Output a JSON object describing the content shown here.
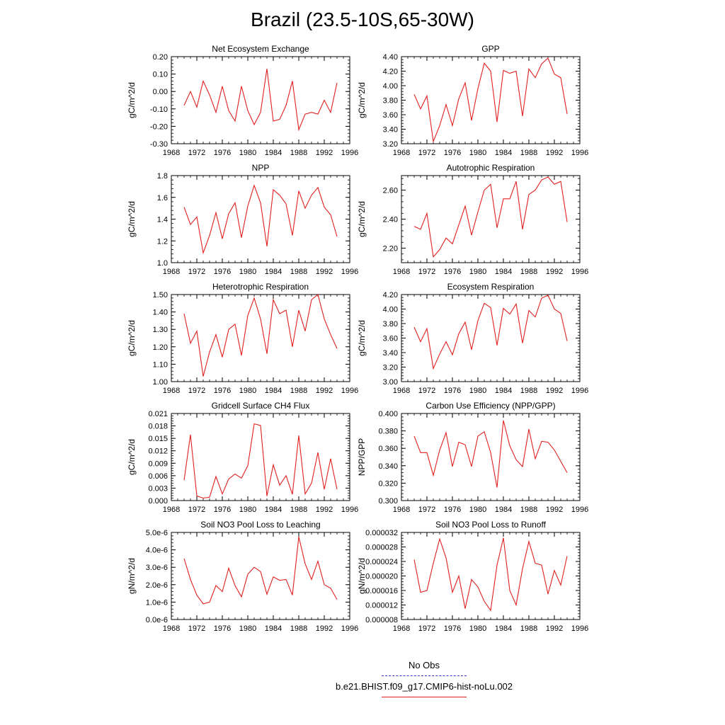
{
  "title": "Brazil (23.5-10S,65-30W)",
  "legend": {
    "obs_label": "No Obs",
    "obs_color": "#3030d0",
    "run_label": "b.e21.BHIST.f09_g17.CMIP6-hist-noLu.002",
    "run_color": "#e02020"
  },
  "chart_data": [
    {
      "type": "line",
      "title": "Net Ecosystem Exchange",
      "ylabel": "gC/m^2/d",
      "xlim": [
        1968,
        1996
      ],
      "xticks": [
        1968,
        1972,
        1976,
        1980,
        1984,
        1988,
        1992,
        1996
      ],
      "ylim": [
        -0.3,
        0.2
      ],
      "yticks": [
        "-0.30",
        "-0.20",
        "-0.10",
        "0.00",
        "0.10",
        "0.20"
      ],
      "x": [
        1970,
        1971,
        1972,
        1973,
        1974,
        1975,
        1976,
        1977,
        1978,
        1979,
        1980,
        1981,
        1982,
        1983,
        1984,
        1985,
        1986,
        1987,
        1988,
        1989,
        1990,
        1991,
        1992,
        1993,
        1994
      ],
      "values": [
        -0.08,
        0.0,
        -0.09,
        0.06,
        -0.02,
        -0.12,
        0.03,
        -0.11,
        -0.17,
        0.03,
        -0.11,
        -0.19,
        -0.12,
        0.13,
        -0.17,
        -0.16,
        -0.08,
        0.06,
        -0.22,
        -0.13,
        -0.12,
        -0.13,
        -0.05,
        -0.12,
        0.05
      ]
    },
    {
      "type": "line",
      "title": "GPP",
      "ylabel": "gC/m^2/d",
      "xlim": [
        1968,
        1996
      ],
      "xticks": [
        1968,
        1972,
        1976,
        1980,
        1984,
        1988,
        1992,
        1996
      ],
      "ylim": [
        3.2,
        4.4
      ],
      "yticks": [
        "3.20",
        "3.40",
        "3.60",
        "3.80",
        "4.00",
        "4.20",
        "4.40"
      ],
      "x": [
        1970,
        1971,
        1972,
        1973,
        1974,
        1975,
        1976,
        1977,
        1978,
        1979,
        1980,
        1981,
        1982,
        1983,
        1984,
        1985,
        1986,
        1987,
        1988,
        1989,
        1990,
        1991,
        1992,
        1993,
        1994
      ],
      "values": [
        3.88,
        3.68,
        3.86,
        3.23,
        3.45,
        3.74,
        3.45,
        3.82,
        4.04,
        3.52,
        3.96,
        4.31,
        4.2,
        3.5,
        4.21,
        4.17,
        4.2,
        3.58,
        4.23,
        4.11,
        4.3,
        4.38,
        4.16,
        4.11,
        3.61
      ]
    },
    {
      "type": "line",
      "title": "NPP",
      "ylabel": "gC/m^2/d",
      "xlim": [
        1968,
        1996
      ],
      "xticks": [
        1968,
        1972,
        1976,
        1980,
        1984,
        1988,
        1992,
        1996
      ],
      "ylim": [
        1.0,
        1.8
      ],
      "yticks": [
        "1.0",
        "1.2",
        "1.4",
        "1.6",
        "1.8"
      ],
      "x": [
        1970,
        1971,
        1972,
        1973,
        1974,
        1975,
        1976,
        1977,
        1978,
        1979,
        1980,
        1981,
        1982,
        1983,
        1984,
        1985,
        1986,
        1987,
        1988,
        1989,
        1990,
        1991,
        1992,
        1993,
        1994
      ],
      "values": [
        1.51,
        1.35,
        1.42,
        1.09,
        1.25,
        1.46,
        1.22,
        1.45,
        1.55,
        1.23,
        1.52,
        1.71,
        1.55,
        1.15,
        1.67,
        1.62,
        1.54,
        1.25,
        1.66,
        1.5,
        1.62,
        1.69,
        1.51,
        1.44,
        1.24
      ]
    },
    {
      "type": "line",
      "title": "Autotrophic Respiration",
      "ylabel": "gC/m^2/d",
      "xlim": [
        1968,
        1996
      ],
      "xticks": [
        1968,
        1972,
        1976,
        1980,
        1984,
        1988,
        1992,
        1996
      ],
      "ylim": [
        2.1,
        2.7
      ],
      "yticks": [
        "2.20",
        "2.40",
        "2.60"
      ],
      "x": [
        1970,
        1971,
        1972,
        1973,
        1974,
        1975,
        1976,
        1977,
        1978,
        1979,
        1980,
        1981,
        1982,
        1983,
        1984,
        1985,
        1986,
        1987,
        1988,
        1989,
        1990,
        1991,
        1992,
        1993,
        1994
      ],
      "values": [
        2.35,
        2.33,
        2.44,
        2.14,
        2.19,
        2.27,
        2.23,
        2.36,
        2.49,
        2.29,
        2.45,
        2.6,
        2.64,
        2.34,
        2.54,
        2.54,
        2.66,
        2.33,
        2.57,
        2.6,
        2.67,
        2.69,
        2.64,
        2.66,
        2.38
      ]
    },
    {
      "type": "line",
      "title": "Heterotrophic Respiration",
      "ylabel": "gC/m^2/d",
      "xlim": [
        1968,
        1996
      ],
      "xticks": [
        1968,
        1972,
        1976,
        1980,
        1984,
        1988,
        1992,
        1996
      ],
      "ylim": [
        1.0,
        1.5
      ],
      "yticks": [
        "1.00",
        "1.10",
        "1.20",
        "1.30",
        "1.40",
        "1.50"
      ],
      "x": [
        1970,
        1971,
        1972,
        1973,
        1974,
        1975,
        1976,
        1977,
        1978,
        1979,
        1980,
        1981,
        1982,
        1983,
        1984,
        1985,
        1986,
        1987,
        1988,
        1989,
        1990,
        1991,
        1992,
        1993,
        1994
      ],
      "values": [
        1.39,
        1.22,
        1.29,
        1.03,
        1.17,
        1.27,
        1.14,
        1.3,
        1.33,
        1.15,
        1.38,
        1.48,
        1.36,
        1.16,
        1.47,
        1.39,
        1.41,
        1.2,
        1.41,
        1.29,
        1.47,
        1.5,
        1.36,
        1.27,
        1.19
      ]
    },
    {
      "type": "line",
      "title": "Ecosystem Respiration",
      "ylabel": "gC/m^2/d",
      "xlim": [
        1968,
        1996
      ],
      "xticks": [
        1968,
        1972,
        1976,
        1980,
        1984,
        1988,
        1992,
        1996
      ],
      "ylim": [
        3.0,
        4.2
      ],
      "yticks": [
        "3.00",
        "3.20",
        "3.40",
        "3.60",
        "3.80",
        "4.00",
        "4.20"
      ],
      "x": [
        1970,
        1971,
        1972,
        1973,
        1974,
        1975,
        1976,
        1977,
        1978,
        1979,
        1980,
        1981,
        1982,
        1983,
        1984,
        1985,
        1986,
        1987,
        1988,
        1989,
        1990,
        1991,
        1992,
        1993,
        1994
      ],
      "values": [
        3.75,
        3.55,
        3.73,
        3.18,
        3.38,
        3.55,
        3.37,
        3.66,
        3.82,
        3.44,
        3.84,
        4.08,
        4.02,
        3.5,
        4.01,
        3.93,
        4.07,
        3.53,
        3.98,
        3.89,
        4.15,
        4.19,
        4.0,
        3.94,
        3.56
      ]
    },
    {
      "type": "line",
      "title": "Gridcell Surface CH4 Flux",
      "ylabel": "gC/m^2/d",
      "xlim": [
        1968,
        1996
      ],
      "xticks": [
        1968,
        1972,
        1976,
        1980,
        1984,
        1988,
        1992,
        1996
      ],
      "ylim": [
        0.0,
        0.021
      ],
      "yticks": [
        "0.000",
        "0.003",
        "0.006",
        "0.009",
        "0.012",
        "0.015",
        "0.018",
        "0.021"
      ],
      "x": [
        1970,
        1971,
        1972,
        1973,
        1974,
        1975,
        1976,
        1977,
        1978,
        1979,
        1980,
        1981,
        1982,
        1983,
        1984,
        1985,
        1986,
        1987,
        1988,
        1989,
        1990,
        1991,
        1992,
        1993,
        1994
      ],
      "values": [
        0.0049,
        0.0159,
        0.0011,
        0.0006,
        0.0008,
        0.0058,
        0.0016,
        0.0052,
        0.0064,
        0.0054,
        0.0084,
        0.0185,
        0.0181,
        0.0011,
        0.0086,
        0.0037,
        0.006,
        0.0015,
        0.0157,
        0.0016,
        0.0042,
        0.0116,
        0.0027,
        0.0101,
        0.0027
      ]
    },
    {
      "type": "line",
      "title": "Carbon Use Efficiency (NPP/GPP)",
      "ylabel": "NPP/GPP",
      "xlim": [
        1968,
        1996
      ],
      "xticks": [
        1968,
        1972,
        1976,
        1980,
        1984,
        1988,
        1992,
        1996
      ],
      "ylim": [
        0.3,
        0.4
      ],
      "yticks": [
        "0.300",
        "0.320",
        "0.340",
        "0.360",
        "0.380",
        "0.400"
      ],
      "x": [
        1970,
        1971,
        1972,
        1973,
        1974,
        1975,
        1976,
        1977,
        1978,
        1979,
        1980,
        1981,
        1982,
        1983,
        1984,
        1985,
        1986,
        1987,
        1988,
        1989,
        1990,
        1991,
        1992,
        1993,
        1994
      ],
      "values": [
        0.374,
        0.355,
        0.355,
        0.329,
        0.358,
        0.378,
        0.339,
        0.367,
        0.364,
        0.339,
        0.374,
        0.379,
        0.355,
        0.315,
        0.392,
        0.363,
        0.347,
        0.339,
        0.382,
        0.348,
        0.368,
        0.367,
        0.358,
        0.345,
        0.332
      ]
    },
    {
      "type": "line",
      "title": "Soil NO3 Pool Loss to Leaching",
      "ylabel": "gN/m^2/d",
      "xlim": [
        1968,
        1996
      ],
      "xticks": [
        1968,
        1972,
        1976,
        1980,
        1984,
        1988,
        1992,
        1996
      ],
      "ylim": [
        0.0,
        5e-06
      ],
      "yticks": [
        "0.0e-6",
        "1.0e-6",
        "2.0e-6",
        "3.0e-6",
        "4.0e-6",
        "5.0e-6"
      ],
      "x": [
        1970,
        1971,
        1972,
        1973,
        1974,
        1975,
        1976,
        1977,
        1978,
        1979,
        1980,
        1981,
        1982,
        1983,
        1984,
        1985,
        1986,
        1987,
        1988,
        1989,
        1990,
        1991,
        1992,
        1993,
        1994
      ],
      "values": [
        3.5e-06,
        2.3e-06,
        1.4e-06,
        9e-07,
        1e-06,
        1.95e-06,
        1.6e-06,
        2.95e-06,
        1.95e-06,
        1.3e-06,
        2.6e-06,
        3e-06,
        2.75e-06,
        1.45e-06,
        2.45e-06,
        2.25e-06,
        2.3e-06,
        1.4e-06,
        4.75e-06,
        3.2e-06,
        2.3e-06,
        3.35e-06,
        2e-06,
        1.8e-06,
        1.15e-06
      ]
    },
    {
      "type": "line",
      "title": "Soil NO3 Pool Loss to Runoff",
      "ylabel": "gN/m^2/d",
      "xlim": [
        1968,
        1996
      ],
      "xticks": [
        1968,
        1972,
        1976,
        1980,
        1984,
        1988,
        1992,
        1996
      ],
      "ylim": [
        8e-06,
        3.2e-05
      ],
      "yticks": [
        "0.000008",
        "0.000012",
        "0.000016",
        "0.000020",
        "0.000024",
        "0.000028",
        "0.000032"
      ],
      "x": [
        1970,
        1971,
        1972,
        1973,
        1974,
        1975,
        1976,
        1977,
        1978,
        1979,
        1980,
        1981,
        1982,
        1983,
        1984,
        1985,
        1986,
        1987,
        1988,
        1989,
        1990,
        1991,
        1992,
        1993,
        1994
      ],
      "values": [
        2.45e-05,
        1.55e-05,
        1.6e-05,
        2.35e-05,
        3.02e-05,
        2.5e-05,
        1.55e-05,
        2e-05,
        1.1e-05,
        1.9e-05,
        1.7e-05,
        1.3e-05,
        1.05e-05,
        2.3e-05,
        3.05e-05,
        1.6e-05,
        1.2e-05,
        2.2e-05,
        2.95e-05,
        2.35e-05,
        2.3e-05,
        1.5e-05,
        2.15e-05,
        1.75e-05,
        2.55e-05
      ]
    }
  ]
}
